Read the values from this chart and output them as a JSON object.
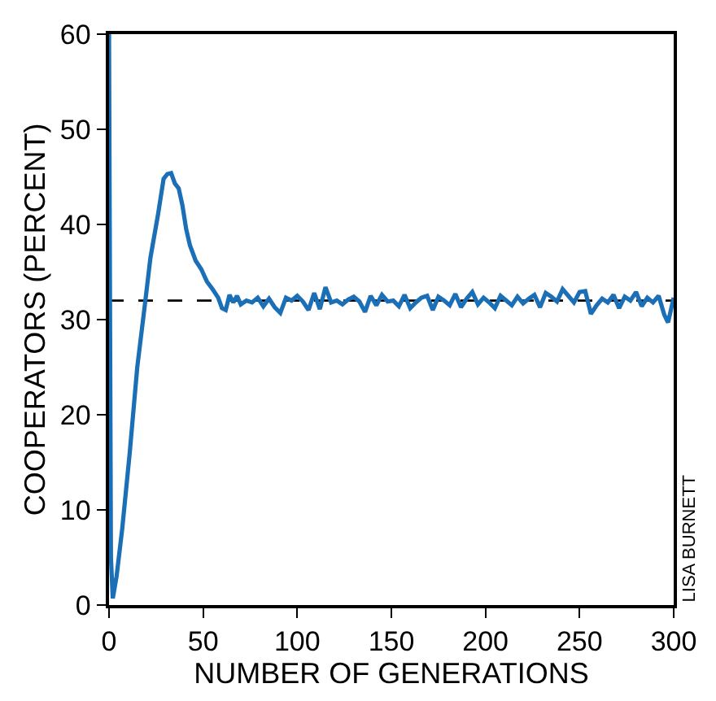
{
  "chart_data": {
    "type": "line",
    "xlabel": "NUMBER OF GENERATIONS",
    "ylabel": "COOPERATORS (PERCENT)",
    "x": [
      0,
      1,
      2,
      4,
      7,
      11,
      15,
      19,
      22,
      26,
      29,
      31,
      33,
      35,
      37,
      39,
      41,
      43,
      46,
      49,
      52,
      55,
      58,
      60,
      62,
      64,
      66,
      68,
      70,
      73,
      76,
      79,
      82,
      85,
      88,
      91,
      94,
      97,
      100,
      103,
      106,
      109,
      112,
      115,
      118,
      121,
      124,
      127,
      130,
      133,
      136,
      139,
      142,
      145,
      148,
      151,
      154,
      157,
      160,
      163,
      166,
      169,
      172,
      175,
      178,
      181,
      184,
      187,
      190,
      193,
      196,
      199,
      202,
      205,
      208,
      211,
      214,
      217,
      220,
      223,
      226,
      229,
      232,
      235,
      238,
      241,
      244,
      247,
      250,
      253,
      256,
      259,
      262,
      265,
      268,
      271,
      274,
      277,
      280,
      283,
      286,
      289,
      292,
      295,
      297,
      300
    ],
    "series": [
      {
        "color": "#1b6fb6",
        "values": [
          60,
          5,
          0.7,
          3,
          8,
          16,
          25,
          31.5,
          36.5,
          41,
          44.8,
          45.3,
          45.4,
          44.3,
          43.8,
          42,
          39.5,
          37.8,
          36.2,
          35.3,
          34,
          33.2,
          32.3,
          31.2,
          31,
          32.6,
          31.8,
          32.5,
          31.6,
          32,
          31.8,
          32.3,
          31.4,
          32.2,
          31.3,
          30.7,
          32.3,
          32,
          32.5,
          31.9,
          31,
          32.8,
          31.1,
          33.4,
          31.8,
          32,
          31.6,
          32.1,
          32.4,
          31.9,
          30.8,
          32.5,
          31.5,
          32.6,
          31.9,
          32,
          31.4,
          32.6,
          31.2,
          31.8,
          32.3,
          32.5,
          31,
          32.4,
          32,
          31.5,
          32.7,
          31.3,
          32.2,
          32.9,
          31.6,
          32.3,
          31.8,
          31.2,
          32.5,
          32,
          31.5,
          32.4,
          31.7,
          32.2,
          32.6,
          31.3,
          32.8,
          32.4,
          31.9,
          33.2,
          32.5,
          31.8,
          32.9,
          33,
          30.6,
          31.5,
          32.2,
          31.8,
          32.6,
          31.2,
          32.4,
          32,
          32.9,
          31.4,
          32.3,
          31.8,
          32.5,
          30.5,
          29.7,
          32.3
        ]
      }
    ],
    "xlim": [
      0,
      300
    ],
    "ylim": [
      0,
      60
    ],
    "xticks": [
      0,
      50,
      100,
      150,
      200,
      250,
      300
    ],
    "yticks": [
      0,
      10,
      20,
      30,
      40,
      50,
      60
    ],
    "ref_lines": [
      {
        "axis": "y",
        "value": 32,
        "color": "#000000",
        "line_style": "dashed"
      }
    ],
    "annotations": [
      "LISA BURNETT"
    ],
    "grid": false,
    "marker": "none",
    "line_style": "solid"
  }
}
